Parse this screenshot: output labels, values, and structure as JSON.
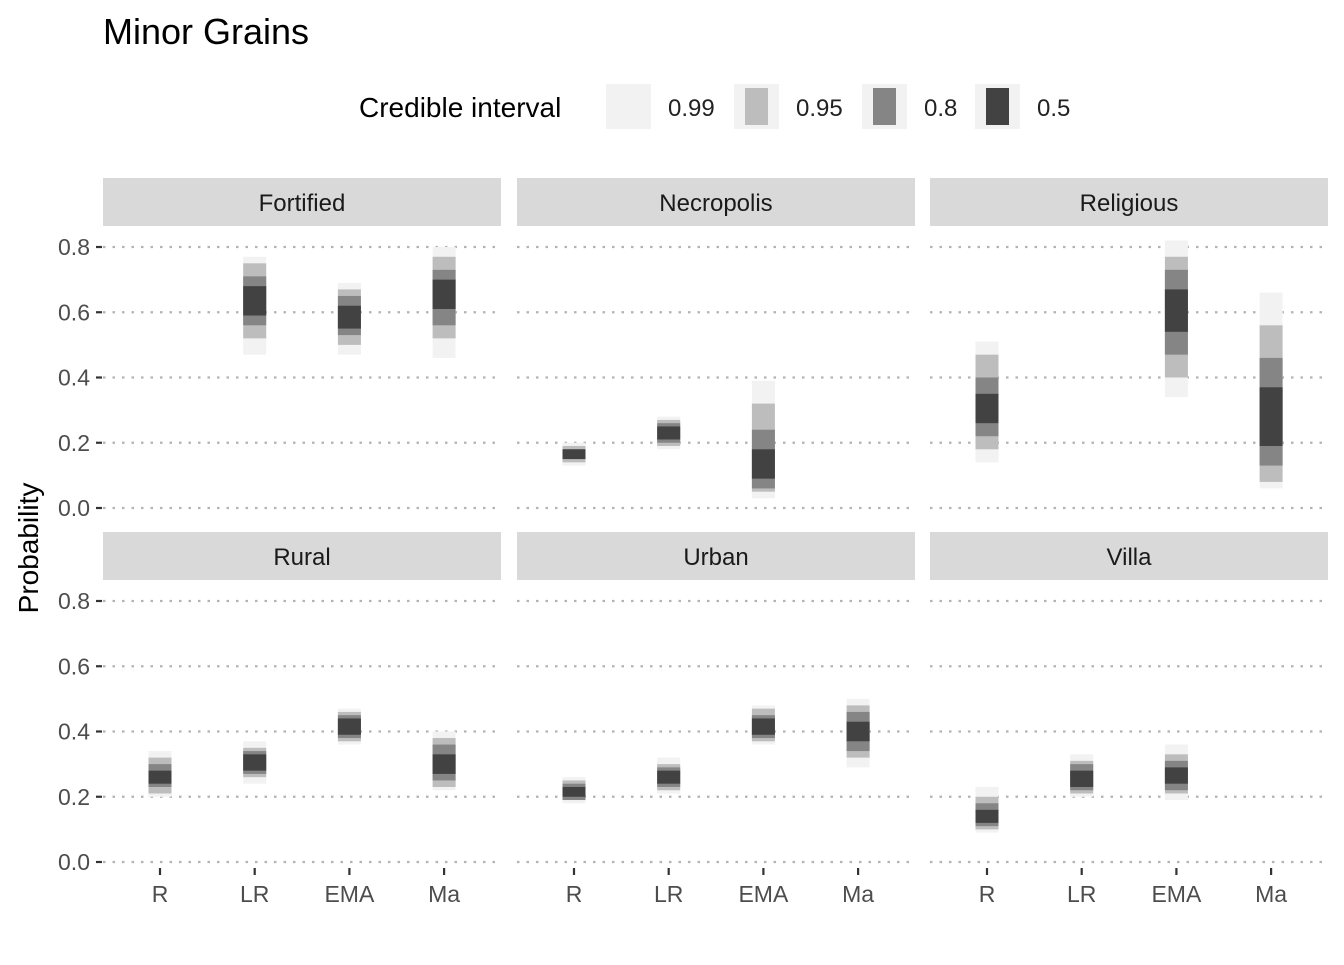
{
  "chart_data": {
    "type": "interval",
    "title": "Minor Grains",
    "ylabel": "Probability",
    "xlabel": "",
    "ylim": [
      0,
      0.8
    ],
    "y_ticks": [
      "0.0",
      "0.2",
      "0.4",
      "0.6",
      "0.8"
    ],
    "grid": "horizontal dotted",
    "categories": [
      "R",
      "LR",
      "EMA",
      "Ma"
    ],
    "legend": {
      "title": "Credible interval",
      "position": "top",
      "entries": [
        {
          "label": "0.99",
          "color": "#f2f2f2"
        },
        {
          "label": "0.95",
          "color": "#bdbdbd"
        },
        {
          "label": "0.8",
          "color": "#858585"
        },
        {
          "label": "0.5",
          "color": "#424242"
        }
      ]
    },
    "panels": [
      {
        "name": "Fortified",
        "intervals": [
          null,
          {
            "i99": [
              0.47,
              0.77
            ],
            "i95": [
              0.52,
              0.75
            ],
            "i80": [
              0.56,
              0.71
            ],
            "i50": [
              0.59,
              0.68
            ]
          },
          {
            "i99": [
              0.47,
              0.69
            ],
            "i95": [
              0.5,
              0.67
            ],
            "i80": [
              0.53,
              0.65
            ],
            "i50": [
              0.55,
              0.62
            ]
          },
          {
            "i99": [
              0.46,
              0.8
            ],
            "i95": [
              0.52,
              0.77
            ],
            "i80": [
              0.56,
              0.73
            ],
            "i50": [
              0.61,
              0.7
            ]
          }
        ]
      },
      {
        "name": "Necropolis",
        "intervals": [
          {
            "i99": [
              0.13,
              0.2
            ],
            "i95": [
              0.14,
              0.19
            ],
            "i80": [
              0.15,
              0.18
            ],
            "i50": [
              0.15,
              0.18
            ]
          },
          {
            "i99": [
              0.18,
              0.28
            ],
            "i95": [
              0.19,
              0.27
            ],
            "i80": [
              0.2,
              0.26
            ],
            "i50": [
              0.21,
              0.25
            ]
          },
          {
            "i99": [
              0.03,
              0.39
            ],
            "i95": [
              0.05,
              0.32
            ],
            "i80": [
              0.06,
              0.24
            ],
            "i50": [
              0.09,
              0.18
            ]
          },
          null
        ]
      },
      {
        "name": "Religious",
        "intervals": [
          {
            "i99": [
              0.14,
              0.51
            ],
            "i95": [
              0.18,
              0.47
            ],
            "i80": [
              0.22,
              0.4
            ],
            "i50": [
              0.26,
              0.35
            ]
          },
          null,
          {
            "i99": [
              0.34,
              0.82
            ],
            "i95": [
              0.4,
              0.77
            ],
            "i80": [
              0.47,
              0.73
            ],
            "i50": [
              0.54,
              0.67
            ]
          },
          {
            "i99": [
              0.06,
              0.66
            ],
            "i95": [
              0.08,
              0.56
            ],
            "i80": [
              0.13,
              0.46
            ],
            "i50": [
              0.19,
              0.37
            ]
          }
        ]
      },
      {
        "name": "Rural",
        "intervals": [
          {
            "i99": [
              0.2,
              0.34
            ],
            "i95": [
              0.21,
              0.32
            ],
            "i80": [
              0.23,
              0.3
            ],
            "i50": [
              0.24,
              0.28
            ]
          },
          {
            "i99": [
              0.24,
              0.37
            ],
            "i95": [
              0.26,
              0.35
            ],
            "i80": [
              0.27,
              0.34
            ],
            "i50": [
              0.28,
              0.33
            ]
          },
          {
            "i99": [
              0.36,
              0.47
            ],
            "i95": [
              0.37,
              0.46
            ],
            "i80": [
              0.38,
              0.45
            ],
            "i50": [
              0.39,
              0.44
            ]
          },
          {
            "i99": [
              0.22,
              0.4
            ],
            "i95": [
              0.23,
              0.38
            ],
            "i80": [
              0.25,
              0.36
            ],
            "i50": [
              0.27,
              0.33
            ]
          }
        ]
      },
      {
        "name": "Urban",
        "intervals": [
          {
            "i99": [
              0.18,
              0.26
            ],
            "i95": [
              0.19,
              0.25
            ],
            "i80": [
              0.19,
              0.24
            ],
            "i50": [
              0.2,
              0.23
            ]
          },
          {
            "i99": [
              0.21,
              0.32
            ],
            "i95": [
              0.22,
              0.3
            ],
            "i80": [
              0.23,
              0.29
            ],
            "i50": [
              0.24,
              0.28
            ]
          },
          {
            "i99": [
              0.36,
              0.48
            ],
            "i95": [
              0.37,
              0.47
            ],
            "i80": [
              0.38,
              0.45
            ],
            "i50": [
              0.39,
              0.44
            ]
          },
          {
            "i99": [
              0.29,
              0.5
            ],
            "i95": [
              0.32,
              0.48
            ],
            "i80": [
              0.34,
              0.46
            ],
            "i50": [
              0.37,
              0.43
            ]
          }
        ]
      },
      {
        "name": "Villa",
        "intervals": [
          {
            "i99": [
              0.09,
              0.23
            ],
            "i95": [
              0.1,
              0.2
            ],
            "i80": [
              0.11,
              0.18
            ],
            "i50": [
              0.12,
              0.16
            ]
          },
          {
            "i99": [
              0.2,
              0.33
            ],
            "i95": [
              0.21,
              0.31
            ],
            "i80": [
              0.22,
              0.3
            ],
            "i50": [
              0.23,
              0.28
            ]
          },
          {
            "i99": [
              0.19,
              0.36
            ],
            "i95": [
              0.21,
              0.33
            ],
            "i80": [
              0.22,
              0.31
            ],
            "i50": [
              0.24,
              0.29
            ]
          },
          null
        ]
      }
    ]
  }
}
